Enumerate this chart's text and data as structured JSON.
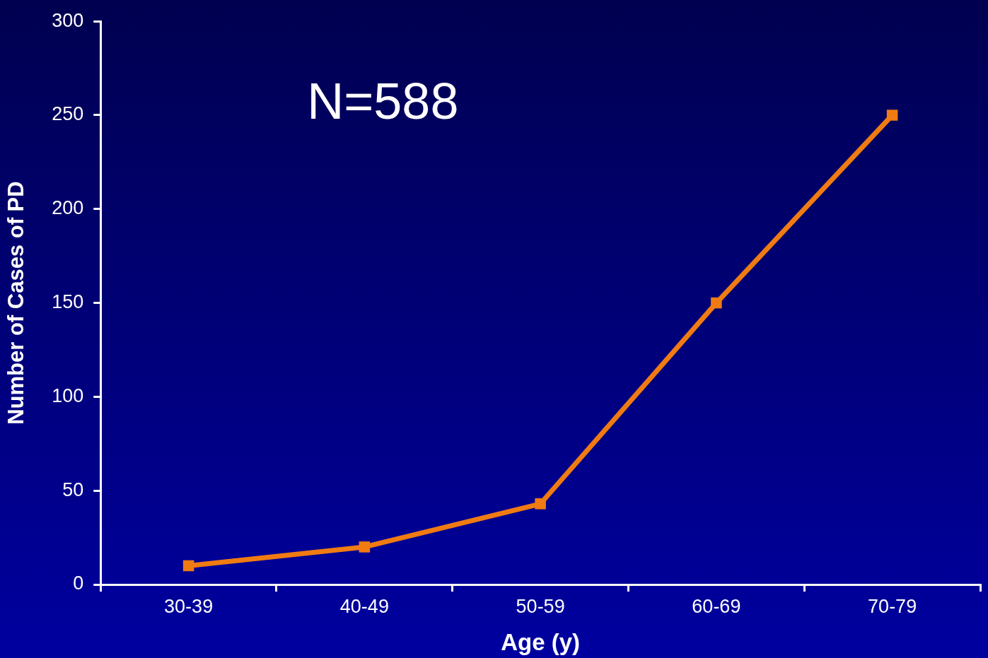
{
  "chart_data": {
    "type": "line",
    "xlabel": "Age (y)",
    "ylabel": "Number of Cases of PD",
    "categories": [
      "30-39",
      "40-49",
      "50-59",
      "60-69",
      "70-79"
    ],
    "series": [
      {
        "color": "#f07b12",
        "values": [
          10,
          20,
          43,
          150,
          250
        ]
      }
    ],
    "ylim": [
      0,
      300
    ],
    "yticks": [
      0,
      50,
      100,
      150,
      200,
      250,
      300
    ],
    "grid": false,
    "legend": false,
    "marker": "square",
    "line_style": "solid",
    "annotations": [
      "N=588"
    ]
  }
}
